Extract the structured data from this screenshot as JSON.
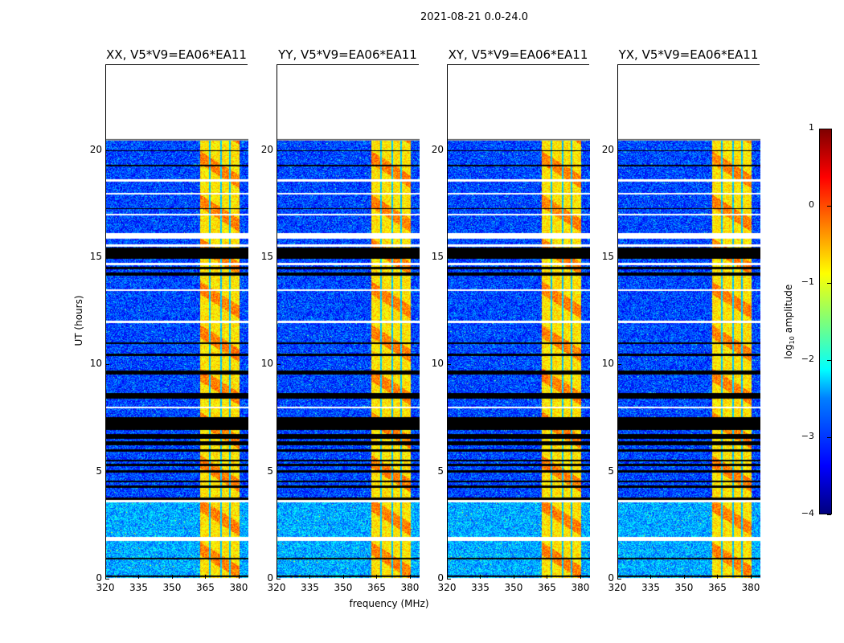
{
  "chart_data": {
    "type": "heatmap",
    "title": "2021-08-21 0.0-24.0",
    "xlabel": "frequency (MHz)",
    "ylabel": "UT (hours)",
    "xlim": [
      320,
      384
    ],
    "ylim": [
      0,
      24
    ],
    "xticks": [
      "320",
      "335",
      "350",
      "365",
      "380"
    ],
    "yticks": [
      "0",
      "5",
      "10",
      "15",
      "20"
    ],
    "data_time_range_hours": [
      0,
      20.5
    ],
    "bright_band_mhz": [
      362,
      380
    ],
    "bright_band_channel_edges_mhz": [
      366.5,
      371.5,
      375.5
    ],
    "bright_band_log10_amplitude": [
      -1,
      0.2
    ],
    "background_log10_amplitude": [
      -3.6,
      -2.2
    ],
    "flagged_rows_hours": [
      [
        0.15,
        0.22
      ],
      [
        0.95,
        1.02
      ],
      [
        3.75,
        3.85
      ],
      [
        4.3,
        4.4
      ],
      [
        4.55,
        4.62
      ],
      [
        5.0,
        5.1
      ],
      [
        5.3,
        5.4
      ],
      [
        5.55,
        5.62
      ],
      [
        6.0,
        6.1
      ],
      [
        6.3,
        6.45
      ],
      [
        6.6,
        6.8
      ],
      [
        7.0,
        7.6
      ],
      [
        8.45,
        8.7
      ],
      [
        9.6,
        9.75
      ],
      [
        10.45,
        10.55
      ],
      [
        11.0,
        11.1
      ],
      [
        14.2,
        14.35
      ],
      [
        14.5,
        14.62
      ],
      [
        15.0,
        15.5
      ],
      [
        17.3,
        17.36
      ],
      [
        19.3,
        19.36
      ],
      [
        20.0,
        20.06
      ]
    ],
    "gap_rows_hours": [
      [
        0.02,
        0.08
      ],
      [
        1.8,
        2.0
      ],
      [
        3.6,
        3.72
      ],
      [
        8.0,
        8.1
      ],
      [
        12.0,
        12.08
      ],
      [
        13.5,
        13.56
      ],
      [
        14.7,
        14.78
      ],
      [
        15.55,
        15.65
      ],
      [
        15.9,
        16.2
      ],
      [
        17.0,
        17.08
      ],
      [
        18.0,
        18.06
      ],
      [
        18.6,
        18.68
      ]
    ],
    "panels": [
      {
        "title": "XX, V5*V9=EA06*EA11"
      },
      {
        "title": "YY, V5*V9=EA06*EA11"
      },
      {
        "title": "XY, V5*V9=EA06*EA11"
      },
      {
        "title": "YX, V5*V9=EA06*EA11"
      }
    ],
    "colorbar": {
      "label": "log",
      "label_sub": "10",
      "label_rest": " amplitude",
      "range": [
        -4,
        1
      ],
      "ticks": [
        "1",
        "0",
        "−1",
        "−2",
        "−3",
        "−4"
      ],
      "colormap": "jet"
    }
  }
}
